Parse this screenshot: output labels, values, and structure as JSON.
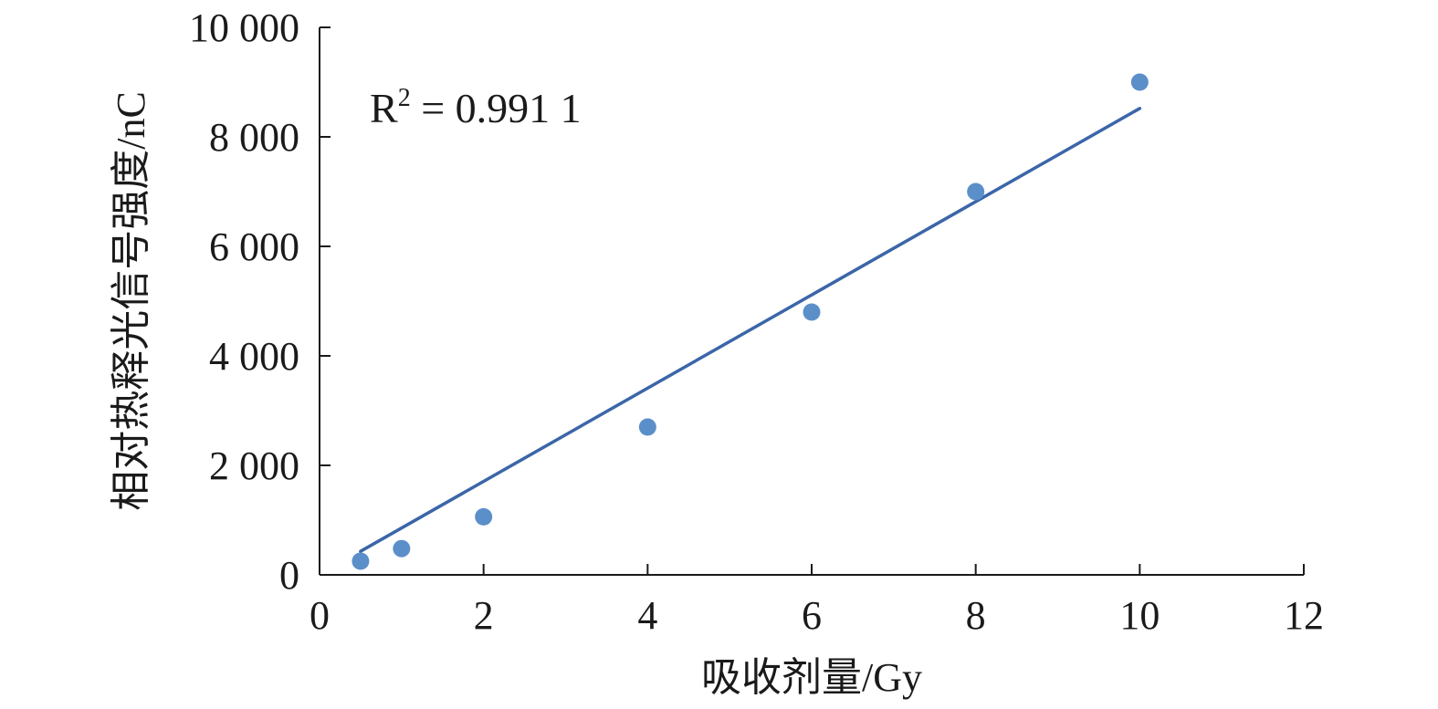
{
  "chart_data": {
    "type": "scatter",
    "xlabel": "吸收剂量/Gy",
    "ylabel": "相对热释光信号强度/nC",
    "xlim": [
      0,
      12
    ],
    "ylim": [
      0,
      10000
    ],
    "x_ticks": [
      0,
      2,
      4,
      6,
      8,
      10,
      12
    ],
    "x_tick_labels": [
      "0",
      "2",
      "4",
      "6",
      "8",
      "10",
      "12"
    ],
    "y_ticks": [
      0,
      2000,
      4000,
      6000,
      8000,
      10000
    ],
    "y_tick_labels": [
      "0",
      "2 000",
      "4 000",
      "6 000",
      "8 000",
      "10 000"
    ],
    "grid": false,
    "series": [
      {
        "x": [
          0.5,
          1,
          2,
          4,
          6,
          8,
          10
        ],
        "y": [
          250,
          480,
          1060,
          2700,
          4800,
          7000,
          9000
        ],
        "color": "#5b8fc9"
      }
    ],
    "trendline": {
      "x": [
        0.5,
        10
      ],
      "y": [
        430,
        8520
      ],
      "color": "#3b66a8"
    },
    "annotation": {
      "r_label": "R",
      "r_power": "2",
      "r_value": " = 0.991 1"
    }
  }
}
